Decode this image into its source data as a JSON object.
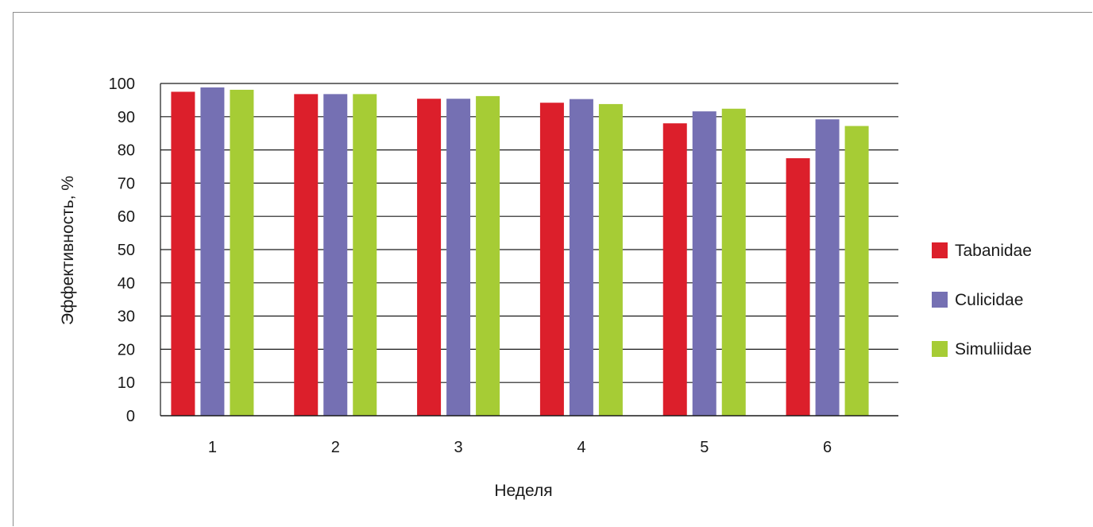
{
  "chart_data": {
    "type": "bar",
    "title": "",
    "xlabel": "Неделя",
    "ylabel": "Эффективность, %",
    "ylim": [
      0,
      100
    ],
    "yticks": [
      0,
      10,
      20,
      30,
      40,
      50,
      60,
      70,
      80,
      90,
      100
    ],
    "grid": true,
    "legend_position": "right",
    "categories": [
      "1",
      "2",
      "3",
      "4",
      "5",
      "6"
    ],
    "series": [
      {
        "name": "Tabanidae",
        "color": "#dc1f2b",
        "values": [
          97.5,
          96.8,
          95.4,
          94.2,
          88.0,
          77.5
        ]
      },
      {
        "name": "Culicidae",
        "color": "#7570b3",
        "values": [
          98.8,
          96.8,
          95.4,
          95.3,
          91.6,
          89.2
        ]
      },
      {
        "name": "Simuliidae",
        "color": "#a6cc35",
        "values": [
          98.1,
          96.8,
          96.2,
          93.8,
          92.4,
          87.2
        ]
      }
    ]
  }
}
